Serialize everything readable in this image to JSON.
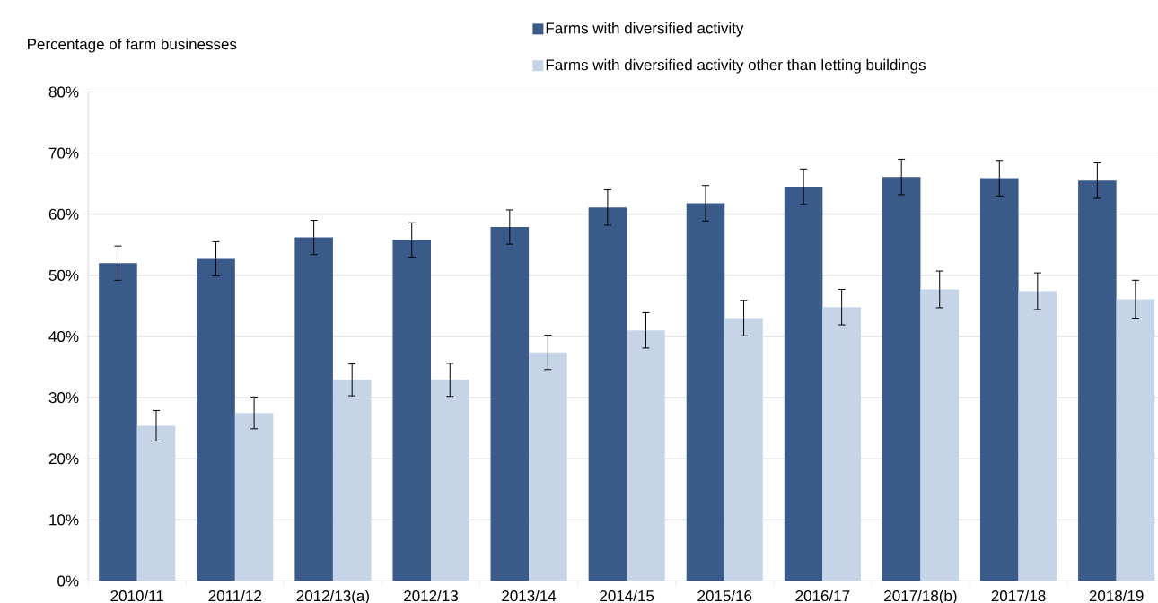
{
  "chart_data": {
    "type": "bar",
    "ylabel": "Percentage of farm businesses",
    "categories": [
      "2010/11",
      "2011/12",
      "2012/13(a)",
      "2012/13",
      "2013/14",
      "2014/15",
      "2015/16",
      "2016/17",
      "2017/18(b)",
      "2017/18",
      "2018/19"
    ],
    "series": [
      {
        "name": "Farms with diversified activity",
        "color": "#3a5a89",
        "values": [
          52.0,
          52.7,
          56.2,
          55.8,
          57.9,
          61.1,
          61.8,
          64.5,
          66.1,
          65.9,
          65.5
        ],
        "errors": [
          2.8,
          2.8,
          2.8,
          2.8,
          2.8,
          2.9,
          2.9,
          2.9,
          2.9,
          2.9,
          2.9
        ]
      },
      {
        "name": "Farms with diversified activity other than letting buildings",
        "color": "#c5d4e7",
        "values": [
          25.4,
          27.5,
          32.9,
          32.9,
          37.4,
          41.0,
          43.0,
          44.8,
          47.7,
          47.4,
          46.1
        ],
        "errors": [
          2.5,
          2.6,
          2.6,
          2.7,
          2.8,
          2.9,
          2.9,
          2.9,
          3.0,
          3.0,
          3.1
        ]
      }
    ],
    "ylim": [
      0,
      80
    ],
    "yticks": [
      {
        "value": 0,
        "label": "0%"
      },
      {
        "value": 10,
        "label": "10%"
      },
      {
        "value": 20,
        "label": "20%"
      },
      {
        "value": 30,
        "label": "30%"
      },
      {
        "value": 40,
        "label": "40%"
      },
      {
        "value": 50,
        "label": "50%"
      },
      {
        "value": 60,
        "label": "60%"
      },
      {
        "value": 70,
        "label": "70%"
      },
      {
        "value": 80,
        "label": "80%"
      }
    ],
    "grid": "y",
    "legend": "top"
  }
}
